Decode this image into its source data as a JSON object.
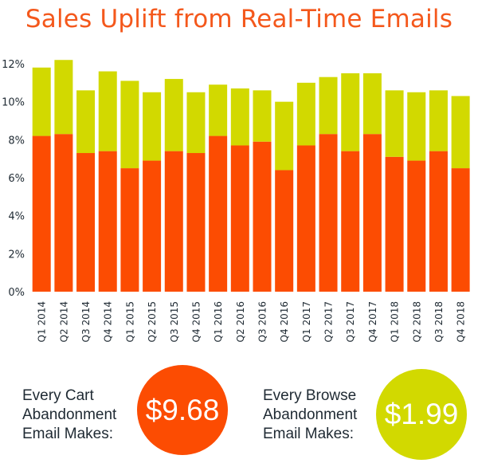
{
  "title": "Sales Uplift from Real-Time Emails",
  "colors": {
    "title": "#f4581c",
    "bottom": "#fc4c02",
    "top": "#d2d900",
    "text": "#1f2a33"
  },
  "chart_data": {
    "type": "bar",
    "stacked": true,
    "title": "Sales Uplift from Real-Time Emails",
    "xlabel": "",
    "ylabel": "",
    "ylim": [
      0,
      12
    ],
    "yticks": [
      "0%",
      "2%",
      "4%",
      "6%",
      "8%",
      "10%",
      "12%"
    ],
    "ytick_values": [
      0,
      2,
      4,
      6,
      8,
      10,
      12
    ],
    "grid": false,
    "categories": [
      "Q1 2014",
      "Q2 2014",
      "Q3 2014",
      "Q4 2014",
      "Q1 2015",
      "Q2 2015",
      "Q3 2015",
      "Q4 2015",
      "Q1 2016",
      "Q2 2016",
      "Q3 2016",
      "Q4 2016",
      "Q1 2017",
      "Q2 2017",
      "Q3 2017",
      "Q4 2017",
      "Q1 2018",
      "Q2 2018",
      "Q3 2018",
      "Q4 2018"
    ],
    "series": [
      {
        "color": "#fc4c02",
        "values": [
          8.2,
          8.3,
          7.3,
          7.4,
          6.5,
          6.9,
          7.4,
          7.3,
          8.2,
          7.7,
          7.9,
          6.4,
          7.7,
          8.3,
          7.4,
          8.3,
          7.1,
          6.9,
          7.4,
          6.5
        ]
      },
      {
        "color": "#d2d900",
        "values": [
          3.6,
          3.9,
          3.3,
          4.2,
          4.6,
          3.6,
          3.8,
          3.2,
          2.7,
          3.0,
          2.7,
          3.6,
          3.3,
          3.0,
          4.1,
          3.2,
          3.5,
          3.6,
          3.2,
          3.8
        ]
      }
    ]
  },
  "callouts": [
    {
      "caption": [
        "Every Cart",
        "Abandonment",
        "Email Makes:"
      ],
      "value": "$9.68",
      "color": "#fc4c02"
    },
    {
      "caption": [
        "Every Browse",
        "Abandonment",
        "Email Makes:"
      ],
      "value": "$1.99",
      "color": "#d2d900"
    }
  ]
}
